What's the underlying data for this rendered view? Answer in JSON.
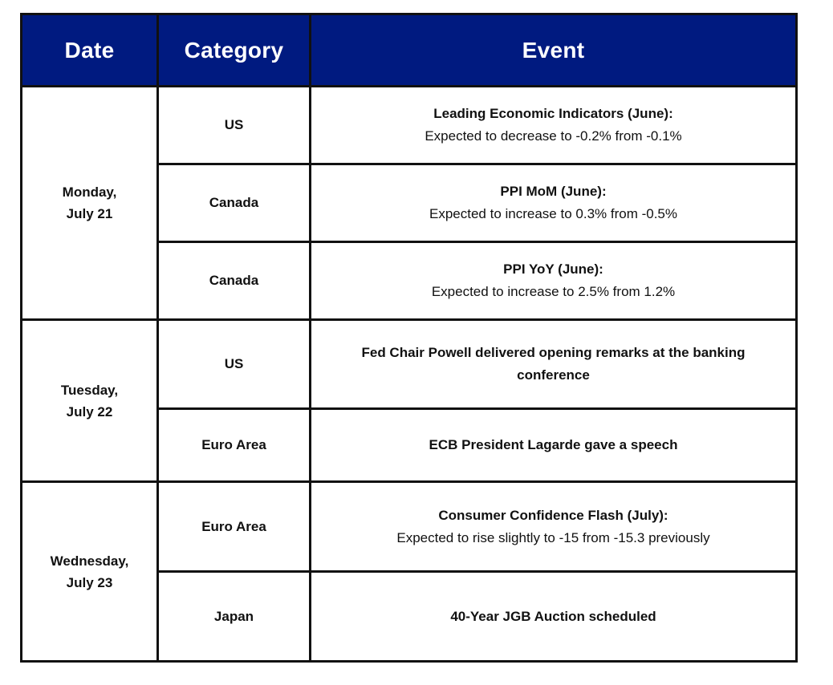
{
  "header": {
    "date": "Date",
    "category": "Category",
    "event": "Event"
  },
  "colors": {
    "header_background": "#001a80",
    "header_text": "#ffffff",
    "border": "#111111"
  },
  "days": [
    {
      "date_line1": "Monday,",
      "date_line2": "July 21",
      "events": [
        {
          "category": "US",
          "title": "Leading Economic Indicators (June):",
          "detail": "Expected to decrease to -0.2% from -0.1%"
        },
        {
          "category": "Canada",
          "title": "PPI MoM (June):",
          "detail": "Expected to increase to 0.3% from -0.5%"
        },
        {
          "category": "Canada",
          "title": "PPI YoY (June):",
          "detail": "Expected to increase to 2.5% from 1.2%"
        }
      ]
    },
    {
      "date_line1": "Tuesday,",
      "date_line2": "July 22",
      "events": [
        {
          "category": "US",
          "title": "Fed Chair Powell delivered opening remarks at the banking conference",
          "detail": ""
        },
        {
          "category": "Euro Area",
          "title": "ECB President Lagarde gave a speech",
          "detail": ""
        }
      ]
    },
    {
      "date_line1": "Wednesday,",
      "date_line2": "July 23",
      "events": [
        {
          "category": "Euro Area",
          "title": "Consumer Confidence Flash (July):",
          "detail": "Expected to rise slightly to -15 from -15.3 previously"
        },
        {
          "category": "Japan",
          "title": "40-Year JGB Auction scheduled",
          "detail": ""
        }
      ]
    }
  ]
}
